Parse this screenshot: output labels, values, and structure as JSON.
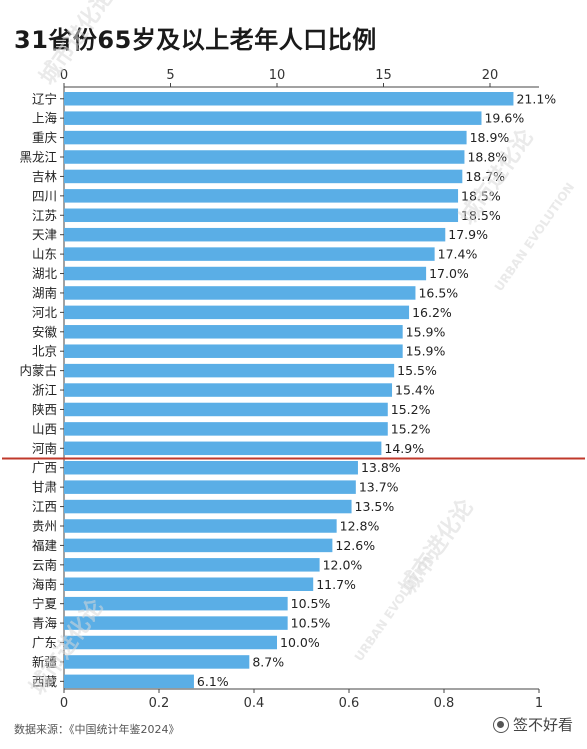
{
  "title": "31省份65岁及以上老年人口比例",
  "footer": {
    "source": "数据来源：《中国统计年鉴2024》",
    "brand": "签不好看"
  },
  "watermark": {
    "cn": "城市进化论",
    "en": "URBAN EVOLUTION"
  },
  "colors": {
    "bar": "#5aaee6",
    "reference_line": "#c0392b",
    "text": "#222222"
  },
  "chart_data": {
    "type": "bar",
    "orientation": "horizontal",
    "categories": [
      "辽宁",
      "上海",
      "重庆",
      "黑龙江",
      "吉林",
      "四川",
      "江苏",
      "天津",
      "山东",
      "湖北",
      "湖南",
      "河北",
      "安徽",
      "北京",
      "内蒙古",
      "浙江",
      "陕西",
      "山西",
      "河南",
      "广西",
      "甘肃",
      "江西",
      "贵州",
      "福建",
      "云南",
      "海南",
      "宁夏",
      "青海",
      "广东",
      "新疆",
      "西藏"
    ],
    "values": [
      21.1,
      19.6,
      18.9,
      18.8,
      18.7,
      18.5,
      18.5,
      17.9,
      17.4,
      17.0,
      16.5,
      16.2,
      15.9,
      15.9,
      15.5,
      15.4,
      15.2,
      15.2,
      14.9,
      13.8,
      13.7,
      13.5,
      12.8,
      12.6,
      12.0,
      11.7,
      10.5,
      10.5,
      10.0,
      8.7,
      6.1
    ],
    "value_labels": [
      "21.1%",
      "19.6%",
      "18.9%",
      "18.8%",
      "18.7%",
      "18.5%",
      "18.5%",
      "17.9%",
      "17.4%",
      "17.0%",
      "16.5%",
      "16.2%",
      "15.9%",
      "15.9%",
      "15.5%",
      "15.4%",
      "15.2%",
      "15.2%",
      "14.9%",
      "13.8%",
      "13.7%",
      "13.5%",
      "12.8%",
      "12.6%",
      "12.0%",
      "11.7%",
      "10.5%",
      "10.5%",
      "10.0%",
      "8.7%",
      "6.1%"
    ],
    "x_top_ticks": [
      "0",
      "5",
      "10",
      "15",
      "20"
    ],
    "x_top_tick_values": [
      0,
      5,
      10,
      15,
      20
    ],
    "x_top_range": [
      0,
      22.3
    ],
    "x_bottom_ticks": [
      "0",
      "0.2",
      "0.4",
      "0.6",
      "0.8",
      "1"
    ],
    "x_bottom_tick_values": [
      0,
      0.2,
      0.4,
      0.6,
      0.8,
      1
    ],
    "x_bottom_range": [
      0,
      1
    ],
    "reference_line_after_category": "河南",
    "grid": false,
    "legend": "none"
  }
}
